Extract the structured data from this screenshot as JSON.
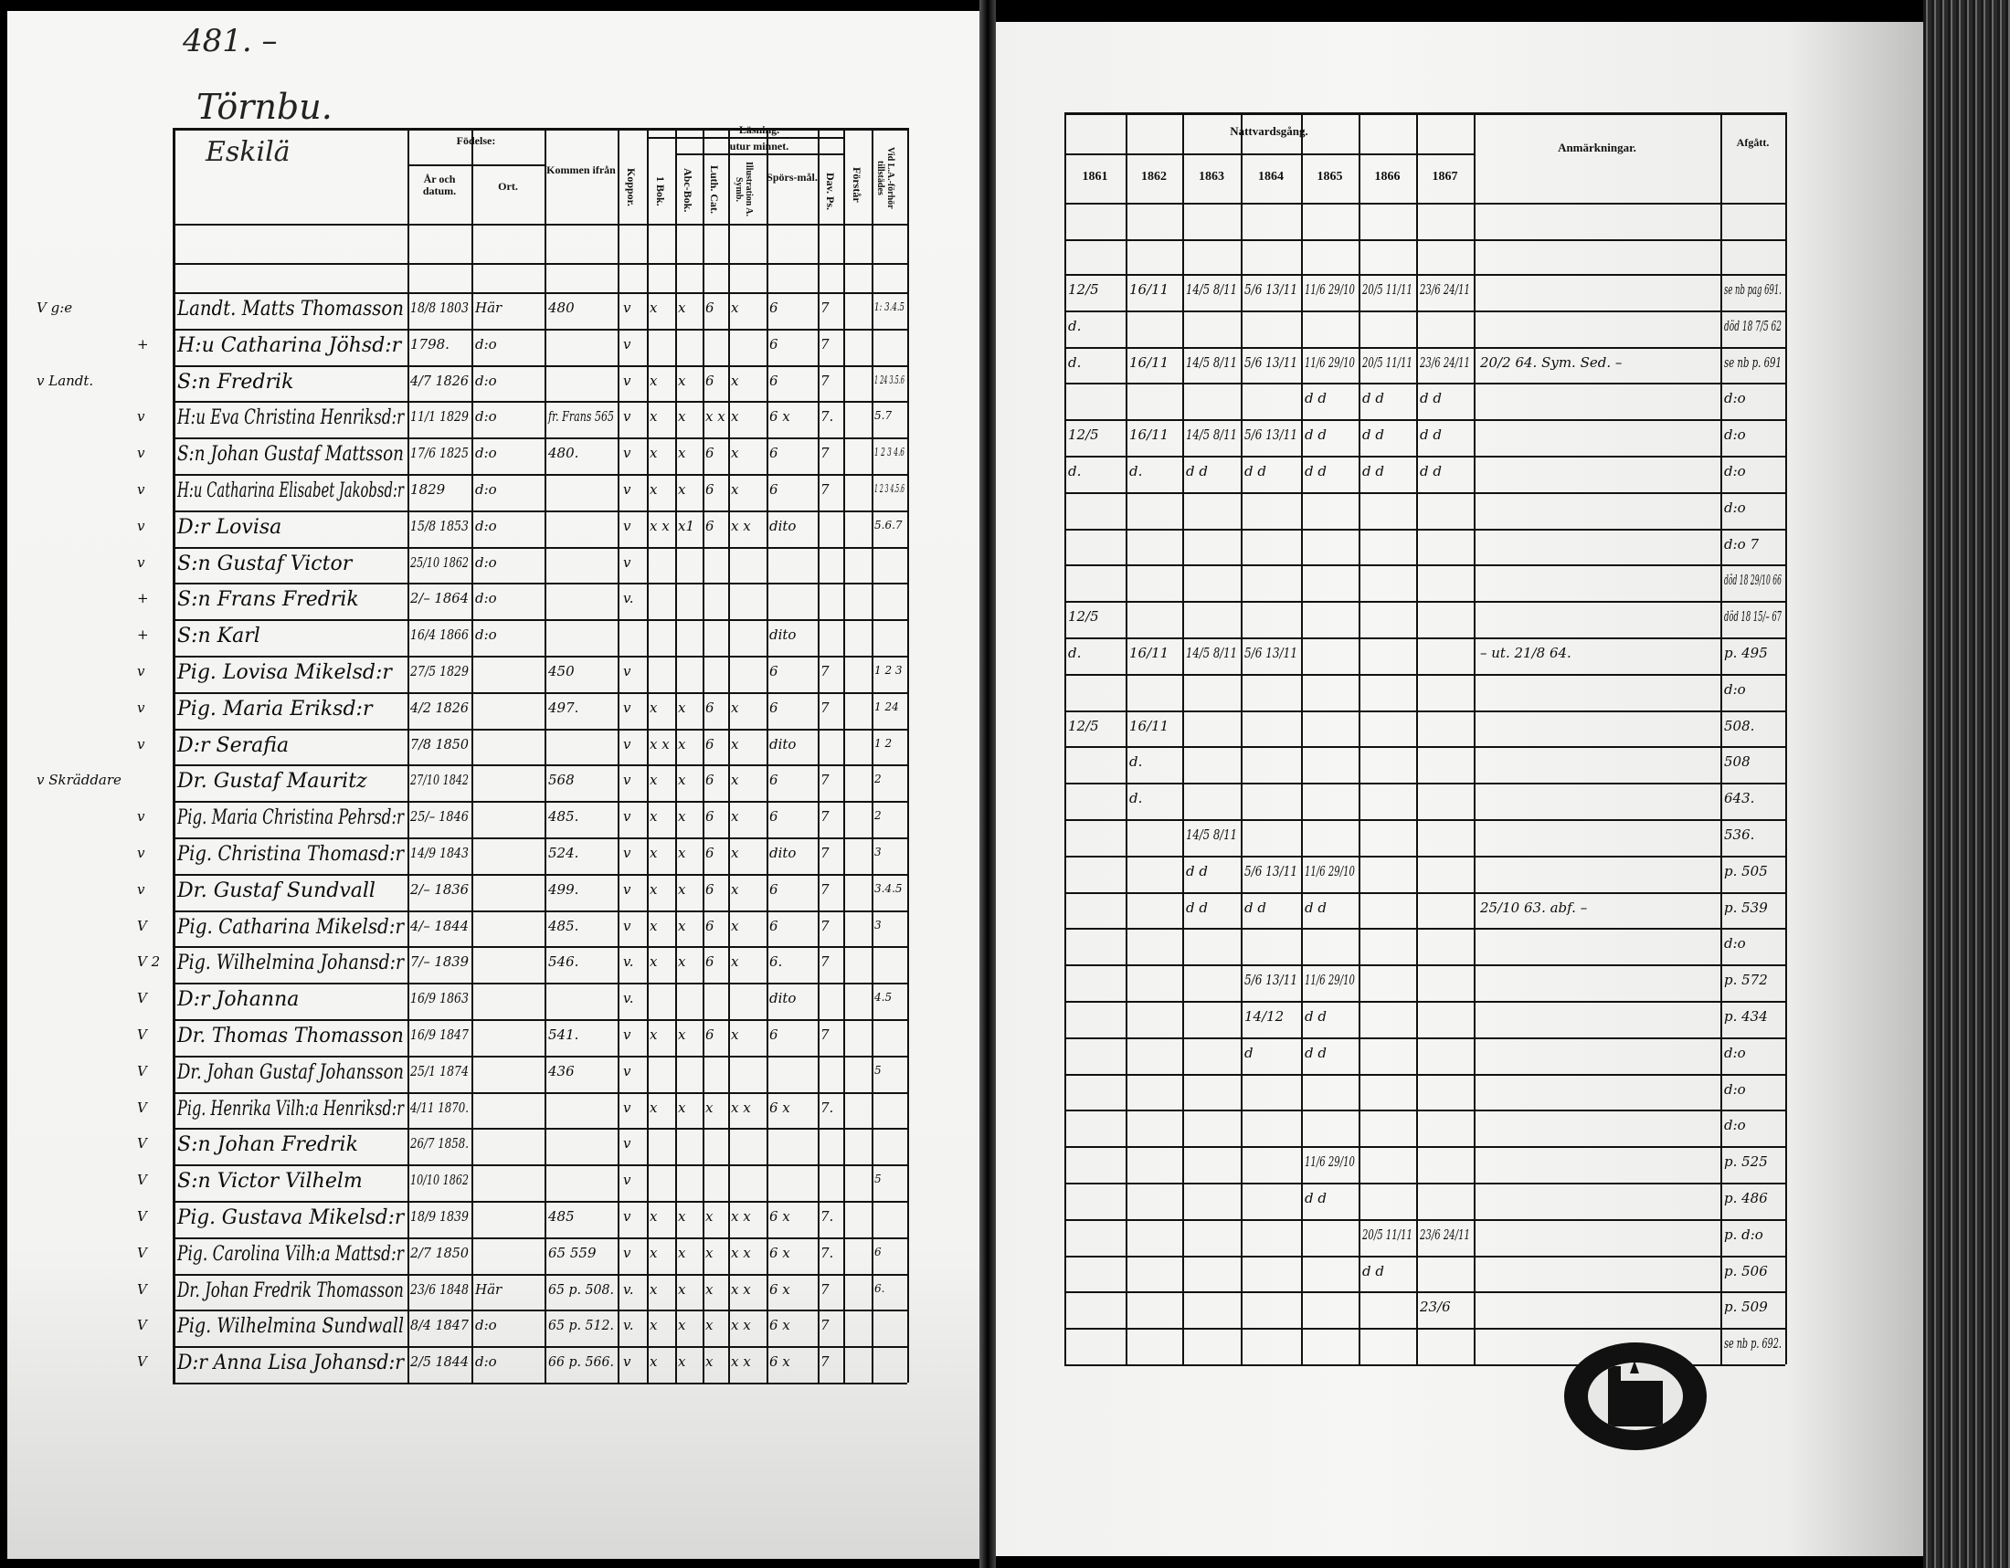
{
  "page_number": "481. –",
  "place_heading": "Törnbu.",
  "farm_name": "Eskilä",
  "left_headers": {
    "birth": "Födelse:",
    "year_date": "År och datum.",
    "place": "Ort.",
    "came_from": "Kommen ifrån",
    "smallpox": "Koppor.",
    "reading": "Läsning.",
    "by_heart": "utur minnet.",
    "book1": "1 Bok.",
    "abc": "Abc-Bok.",
    "luther": "Luth. Cat.",
    "explanation": "Illustration A. Symb.",
    "questions": "Spörs-mål.",
    "david": "Dav. Ps.",
    "understands": "Förstår",
    "attended": "Vid L.A.-förhör tillstädes"
  },
  "right_headers": {
    "communion": "Nattvardsgång.",
    "years": [
      "1861",
      "1862",
      "1863",
      "1864",
      "1865",
      "1866",
      "1867"
    ],
    "remarks": "Anmärkningar.",
    "departed": "Afgått."
  },
  "rows": [
    {
      "m": "V g:e",
      "name": "Landt. Matts Thomasson",
      "born": "18/8 1803",
      "ort": "Här",
      "from": "480",
      "kop": "v",
      "r": [
        "x",
        "x",
        "6",
        "x",
        "6",
        "7"
      ],
      "vid": "1: 3.4.5",
      "n": [
        "12/5",
        "16/11",
        "14/5 8/11",
        "5/6 13/11",
        "11/6 29/10",
        "20/5 11/11",
        "23/6 24/11"
      ],
      "note": "",
      "afg": "se nb pag 691."
    },
    {
      "m": "+",
      "name": "H:u Catharina Jöhsd:r",
      "born": "1798.",
      "ort": "d:o",
      "from": "",
      "kop": "v",
      "r": [
        "",
        "",
        "",
        "",
        "6",
        "7"
      ],
      "vid": "",
      "n": [
        "d.",
        "",
        "",
        "",
        "",
        "",
        ""
      ],
      "note": "",
      "afg": "död 18 7/5 62"
    },
    {
      "m": "v Landt.",
      "name": "S:n Fredrik",
      "born": "4/7 1826",
      "ort": "d:o",
      "from": "",
      "kop": "v",
      "r": [
        "x",
        "x",
        "6",
        "x",
        "6",
        "7"
      ],
      "vid": "1 24 3.5.6",
      "n": [
        "d.",
        "16/11",
        "14/5 8/11",
        "5/6 13/11",
        "11/6 29/10",
        "20/5 11/11",
        "23/6 24/11"
      ],
      "note": "20/2 64. Sym. Sed. –",
      "afg": "se nb p. 691"
    },
    {
      "m": "v",
      "name": "H:u Eva Christina Henriksd:r",
      "born": "11/1 1829",
      "ort": "d:o",
      "from": "fr. Frans 565",
      "kop": "v",
      "r": [
        "x",
        "x",
        "x x",
        "x",
        "6 x",
        "7."
      ],
      "vid": "5.7",
      "n": [
        "",
        "",
        "",
        "",
        "d d",
        "d d",
        "d d"
      ],
      "note": "",
      "afg": "d:o"
    },
    {
      "m": "v",
      "name": "S:n Johan Gustaf Mattsson",
      "born": "17/6 1825",
      "ort": "d:o",
      "from": "480.",
      "kop": "v",
      "r": [
        "x",
        "x",
        "6",
        "x",
        "6",
        "7"
      ],
      "vid": "1 2 3 4.6",
      "n": [
        "12/5",
        "16/11",
        "14/5 8/11",
        "5/6 13/11",
        "d d",
        "d d",
        "d d"
      ],
      "note": "",
      "afg": "d:o"
    },
    {
      "m": "v",
      "name": "H:u Catharina Elisabet Jakobsd:r",
      "born": "1829",
      "ort": "d:o",
      "from": "",
      "kop": "v",
      "r": [
        "x",
        "x",
        "6",
        "x",
        "6",
        "7"
      ],
      "vid": "1 2 3 4.5.6",
      "n": [
        "d.",
        "d.",
        "d d",
        "d d",
        "d d",
        "d d",
        "d d"
      ],
      "note": "",
      "afg": "d:o"
    },
    {
      "m": "v",
      "name": "D:r Lovisa",
      "born": "15/8 1853",
      "ort": "d:o",
      "from": "",
      "kop": "v",
      "r": [
        "x x",
        "x1",
        "6",
        "x x",
        "dito",
        ""
      ],
      "vid": "5.6.7",
      "n": [
        "",
        "",
        "",
        "",
        "",
        "",
        ""
      ],
      "note": "",
      "afg": "d:o"
    },
    {
      "m": "v",
      "name": "S:n Gustaf Victor",
      "born": "25/10 1862",
      "ort": "d:o",
      "from": "",
      "kop": "v",
      "r": [
        "",
        "",
        "",
        "",
        "",
        ""
      ],
      "vid": "",
      "n": [
        "",
        "",
        "",
        "",
        "",
        "",
        ""
      ],
      "note": "",
      "afg": "d:o 7"
    },
    {
      "m": "+",
      "name": "S:n Frans Fredrik",
      "born": "2/– 1864",
      "ort": "d:o",
      "from": "",
      "kop": "v.",
      "r": [
        "",
        "",
        "",
        "",
        "",
        ""
      ],
      "vid": "",
      "n": [
        "",
        "",
        "",
        "",
        "",
        "",
        ""
      ],
      "note": "",
      "afg": "död 18 29/10 66"
    },
    {
      "m": "+",
      "name": "S:n Karl",
      "born": "16/4 1866",
      "ort": "d:o",
      "from": "",
      "kop": "",
      "r": [
        "",
        "",
        "",
        "",
        "dito",
        ""
      ],
      "vid": "",
      "n": [
        "12/5",
        "",
        "",
        "",
        "",
        "",
        ""
      ],
      "note": "",
      "afg": "död 18 15/– 67"
    },
    {
      "m": "v",
      "name": "Pig. Lovisa Mikelsd:r",
      "born": "27/5 1829",
      "ort": "",
      "from": "450",
      "kop": "v",
      "r": [
        "",
        "",
        "",
        "",
        "6",
        "7"
      ],
      "vid": "1 2 3",
      "n": [
        "d.",
        "16/11",
        "14/5 8/11",
        "5/6 13/11",
        "",
        "",
        ""
      ],
      "note": "– ut. 21/8 64.",
      "afg": "p. 495"
    },
    {
      "m": "v",
      "name": "Pig. Maria Eriksd:r",
      "born": "4/2 1826",
      "ort": "",
      "from": "497.",
      "kop": "v",
      "r": [
        "x",
        "x",
        "6",
        "x",
        "6",
        "7"
      ],
      "vid": "1 24",
      "n": [
        "",
        "",
        "",
        "",
        "",
        "",
        ""
      ],
      "note": "",
      "afg": "d:o"
    },
    {
      "m": "v",
      "name": "D:r Serafia",
      "born": "7/8 1850",
      "ort": "",
      "from": "",
      "kop": "v",
      "r": [
        "x x",
        "x",
        "6",
        "x",
        "dito",
        ""
      ],
      "vid": "1 2",
      "n": [
        "12/5",
        "16/11",
        "",
        "",
        "",
        "",
        ""
      ],
      "note": "",
      "afg": "508."
    },
    {
      "m": "v Skräddare",
      "name": "Dr. Gustaf Mauritz",
      "born": "27/10 1842",
      "ort": "",
      "from": "568",
      "kop": "v",
      "r": [
        "x",
        "x",
        "6",
        "x",
        "6",
        "7"
      ],
      "vid": "2",
      "n": [
        "",
        "d.",
        "",
        "",
        "",
        "",
        ""
      ],
      "note": "",
      "afg": "508"
    },
    {
      "m": "v",
      "name": "Pig. Maria Christina Pehrsd:r",
      "born": "25/– 1846",
      "ort": "",
      "from": "485.",
      "kop": "v",
      "r": [
        "x",
        "x",
        "6",
        "x",
        "6",
        "7"
      ],
      "vid": "2",
      "n": [
        "",
        "d.",
        "",
        "",
        "",
        "",
        ""
      ],
      "note": "",
      "afg": "643."
    },
    {
      "m": "v",
      "name": "Pig. Christina Thomasd:r",
      "born": "14/9 1843",
      "ort": "",
      "from": "524.",
      "kop": "v",
      "r": [
        "x",
        "x",
        "6",
        "x",
        "dito",
        "7"
      ],
      "vid": "3",
      "n": [
        "",
        "",
        "14/5 8/11",
        "",
        "",
        "",
        ""
      ],
      "note": "",
      "afg": "536."
    },
    {
      "m": "v",
      "name": "Dr. Gustaf Sundvall",
      "born": "2/– 1836",
      "ort": "",
      "from": "499.",
      "kop": "v",
      "r": [
        "x",
        "x",
        "6",
        "x",
        "6",
        "7"
      ],
      "vid": "3.4.5",
      "n": [
        "",
        "",
        "d d",
        "5/6 13/11",
        "11/6 29/10",
        "",
        ""
      ],
      "note": "",
      "afg": "p. 505"
    },
    {
      "m": "V",
      "name": "Pig. Catharina Mikelsd:r",
      "born": "4/– 1844",
      "ort": "",
      "from": "485.",
      "kop": "v",
      "r": [
        "x",
        "x",
        "6",
        "x",
        "6",
        "7"
      ],
      "vid": "3",
      "n": [
        "",
        "",
        "d d",
        "d d",
        "d d",
        "",
        ""
      ],
      "note": "25/10 63. abf. –",
      "afg": "p. 539"
    },
    {
      "m": "V 2",
      "name": "Pig. Wilhelmina Johansd:r",
      "born": "7/– 1839",
      "ort": "",
      "from": "546.",
      "kop": "v.",
      "r": [
        "x",
        "x",
        "6",
        "x",
        "6.",
        "7"
      ],
      "vid": "",
      "n": [
        "",
        "",
        "",
        "",
        "",
        "",
        ""
      ],
      "note": "",
      "afg": "d:o"
    },
    {
      "m": "V",
      "name": "D:r Johanna",
      "born": "16/9 1863",
      "ort": "",
      "from": "",
      "kop": "v.",
      "r": [
        "",
        "",
        "",
        "",
        "dito",
        ""
      ],
      "vid": "4.5",
      "n": [
        "",
        "",
        "",
        "5/6 13/11",
        "11/6 29/10",
        "",
        ""
      ],
      "note": "",
      "afg": "p. 572"
    },
    {
      "m": "V",
      "name": "Dr. Thomas Thomasson",
      "born": "16/9 1847",
      "ort": "",
      "from": "541.",
      "kop": "v",
      "r": [
        "x",
        "x",
        "6",
        "x",
        "6",
        "7"
      ],
      "vid": "",
      "n": [
        "",
        "",
        "",
        "14/12",
        "d d",
        "",
        ""
      ],
      "note": "",
      "afg": "p. 434"
    },
    {
      "m": "V",
      "name": "Dr. Johan Gustaf Johansson",
      "born": "25/1 1874",
      "ort": "",
      "from": "436",
      "kop": "v",
      "r": [
        "",
        "",
        "",
        "",
        "",
        ""
      ],
      "vid": "5",
      "n": [
        "",
        "",
        "",
        "d",
        "d d",
        "",
        ""
      ],
      "note": "",
      "afg": "d:o"
    },
    {
      "m": "V",
      "name": "Pig. Henrika Vilh:a Henriksd:r",
      "born": "4/11 1870.",
      "ort": "",
      "from": "",
      "kop": "v",
      "r": [
        "x",
        "x",
        "x",
        "x x",
        "6 x",
        "7."
      ],
      "vid": "",
      "n": [
        "",
        "",
        "",
        "",
        "",
        "",
        ""
      ],
      "note": "",
      "afg": "d:o"
    },
    {
      "m": "V",
      "name": "S:n Johan Fredrik",
      "born": "26/7 1858.",
      "ort": "",
      "from": "",
      "kop": "v",
      "r": [
        "",
        "",
        "",
        "",
        "",
        ""
      ],
      "vid": "",
      "n": [
        "",
        "",
        "",
        "",
        "",
        "",
        ""
      ],
      "note": "",
      "afg": "d:o"
    },
    {
      "m": "V",
      "name": "S:n Victor Vilhelm",
      "born": "10/10 1862",
      "ort": "",
      "from": "",
      "kop": "v",
      "r": [
        "",
        "",
        "",
        "",
        "",
        ""
      ],
      "vid": "5",
      "n": [
        "",
        "",
        "",
        "",
        "11/6 29/10",
        "",
        ""
      ],
      "note": "",
      "afg": "p. 525"
    },
    {
      "m": "V",
      "name": "Pig. Gustava Mikelsd:r",
      "born": "18/9 1839",
      "ort": "",
      "from": "485",
      "kop": "v",
      "r": [
        "x",
        "x",
        "x",
        "x x",
        "6 x",
        "7."
      ],
      "vid": "",
      "n": [
        "",
        "",
        "",
        "",
        "d d",
        "",
        ""
      ],
      "note": "",
      "afg": "p. 486"
    },
    {
      "m": "V",
      "name": "Pig. Carolina Vilh:a Mattsd:r",
      "born": "2/7 1850",
      "ort": "",
      "from": "65 559",
      "kop": "v",
      "r": [
        "x",
        "x",
        "x",
        "x x",
        "6 x",
        "7."
      ],
      "vid": "6",
      "n": [
        "",
        "",
        "",
        "",
        "",
        "20/5 11/11",
        "23/6 24/11"
      ],
      "note": "",
      "afg": "p. d:o"
    },
    {
      "m": "V",
      "name": "Dr. Johan Fredrik Thomasson",
      "born": "23/6 1848",
      "ort": "Här",
      "from": "65 p. 508.",
      "kop": "v.",
      "r": [
        "x",
        "x",
        "x",
        "x x",
        "6 x",
        "7"
      ],
      "vid": "6.",
      "n": [
        "",
        "",
        "",
        "",
        "",
        "d d",
        ""
      ],
      "note": "",
      "afg": "p. 506"
    },
    {
      "m": "V",
      "name": "Pig. Wilhelmina Sundwall",
      "born": "8/4 1847",
      "ort": "d:o",
      "from": "65 p. 512.",
      "kop": "v.",
      "r": [
        "x",
        "x",
        "x",
        "x x",
        "6 x",
        "7"
      ],
      "vid": "",
      "n": [
        "",
        "",
        "",
        "",
        "",
        "",
        "23/6"
      ],
      "note": "",
      "afg": "p. 509"
    },
    {
      "m": "V",
      "name": "D:r Anna Lisa Johansd:r",
      "born": "2/5 1844",
      "ort": "d:o",
      "from": "66 p. 566.",
      "kop": "v",
      "r": [
        "x",
        "x",
        "x",
        "x x",
        "6 x",
        "7"
      ],
      "vid": "",
      "n": [
        "",
        "",
        "",
        "",
        "",
        "",
        ""
      ],
      "note": "",
      "afg": "se nb p. 692."
    }
  ]
}
